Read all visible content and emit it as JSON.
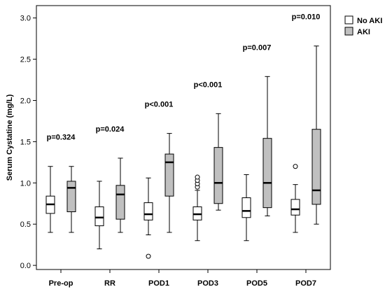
{
  "chart_data": {
    "type": "box",
    "ylabel": "Serum Cystatine (mg/L)",
    "xlabel": "",
    "ylim": [
      -0.05,
      3.15
    ],
    "yticks": [
      0.0,
      0.5,
      1.0,
      1.5,
      2.0,
      2.5,
      3.0
    ],
    "ytick_labels": [
      "0.0",
      "0.5",
      "1.0",
      "1.5",
      "2.0",
      "2.5",
      "3.0"
    ],
    "categories": [
      "Pre-op",
      "RR",
      "POD1",
      "POD3",
      "POD5",
      "POD7"
    ],
    "p_values": [
      "p=0.324",
      "p=0.024",
      "p<0.001",
      "p<0.001",
      "p=0.007",
      "p=0.010"
    ],
    "legend": {
      "position": "top-right"
    },
    "series": [
      {
        "name": "No AKI",
        "color": "#ffffff",
        "boxes": [
          {
            "whisker_low": 0.4,
            "q1": 0.63,
            "median": 0.74,
            "q3": 0.84,
            "whisker_high": 1.2,
            "outliers": []
          },
          {
            "whisker_low": 0.2,
            "q1": 0.48,
            "median": 0.58,
            "q3": 0.71,
            "whisker_high": 1.02,
            "outliers": []
          },
          {
            "whisker_low": 0.37,
            "q1": 0.55,
            "median": 0.62,
            "q3": 0.76,
            "whisker_high": 1.06,
            "outliers": [
              0.11
            ]
          },
          {
            "whisker_low": 0.3,
            "q1": 0.55,
            "median": 0.62,
            "q3": 0.71,
            "whisker_high": 0.91,
            "outliers": [
              0.95,
              0.99,
              1.03,
              1.07
            ]
          },
          {
            "whisker_low": 0.3,
            "q1": 0.58,
            "median": 0.66,
            "q3": 0.82,
            "whisker_high": 1.1,
            "outliers": []
          },
          {
            "whisker_low": 0.4,
            "q1": 0.61,
            "median": 0.68,
            "q3": 0.8,
            "whisker_high": 0.98,
            "outliers": [
              1.2
            ]
          }
        ]
      },
      {
        "name": "AKI",
        "color": "#c0c0c0",
        "boxes": [
          {
            "whisker_low": 0.4,
            "q1": 0.65,
            "median": 0.94,
            "q3": 1.02,
            "whisker_high": 1.2,
            "outliers": []
          },
          {
            "whisker_low": 0.4,
            "q1": 0.56,
            "median": 0.86,
            "q3": 0.97,
            "whisker_high": 1.3,
            "outliers": []
          },
          {
            "whisker_low": 0.4,
            "q1": 0.84,
            "median": 1.25,
            "q3": 1.35,
            "whisker_high": 1.6,
            "outliers": []
          },
          {
            "whisker_low": 0.67,
            "q1": 0.75,
            "median": 1.0,
            "q3": 1.43,
            "whisker_high": 1.84,
            "outliers": []
          },
          {
            "whisker_low": 0.6,
            "q1": 0.7,
            "median": 1.0,
            "q3": 1.54,
            "whisker_high": 2.29,
            "outliers": []
          },
          {
            "whisker_low": 0.5,
            "q1": 0.74,
            "median": 0.91,
            "q3": 1.65,
            "whisker_high": 2.66,
            "outliers": []
          }
        ]
      }
    ]
  }
}
